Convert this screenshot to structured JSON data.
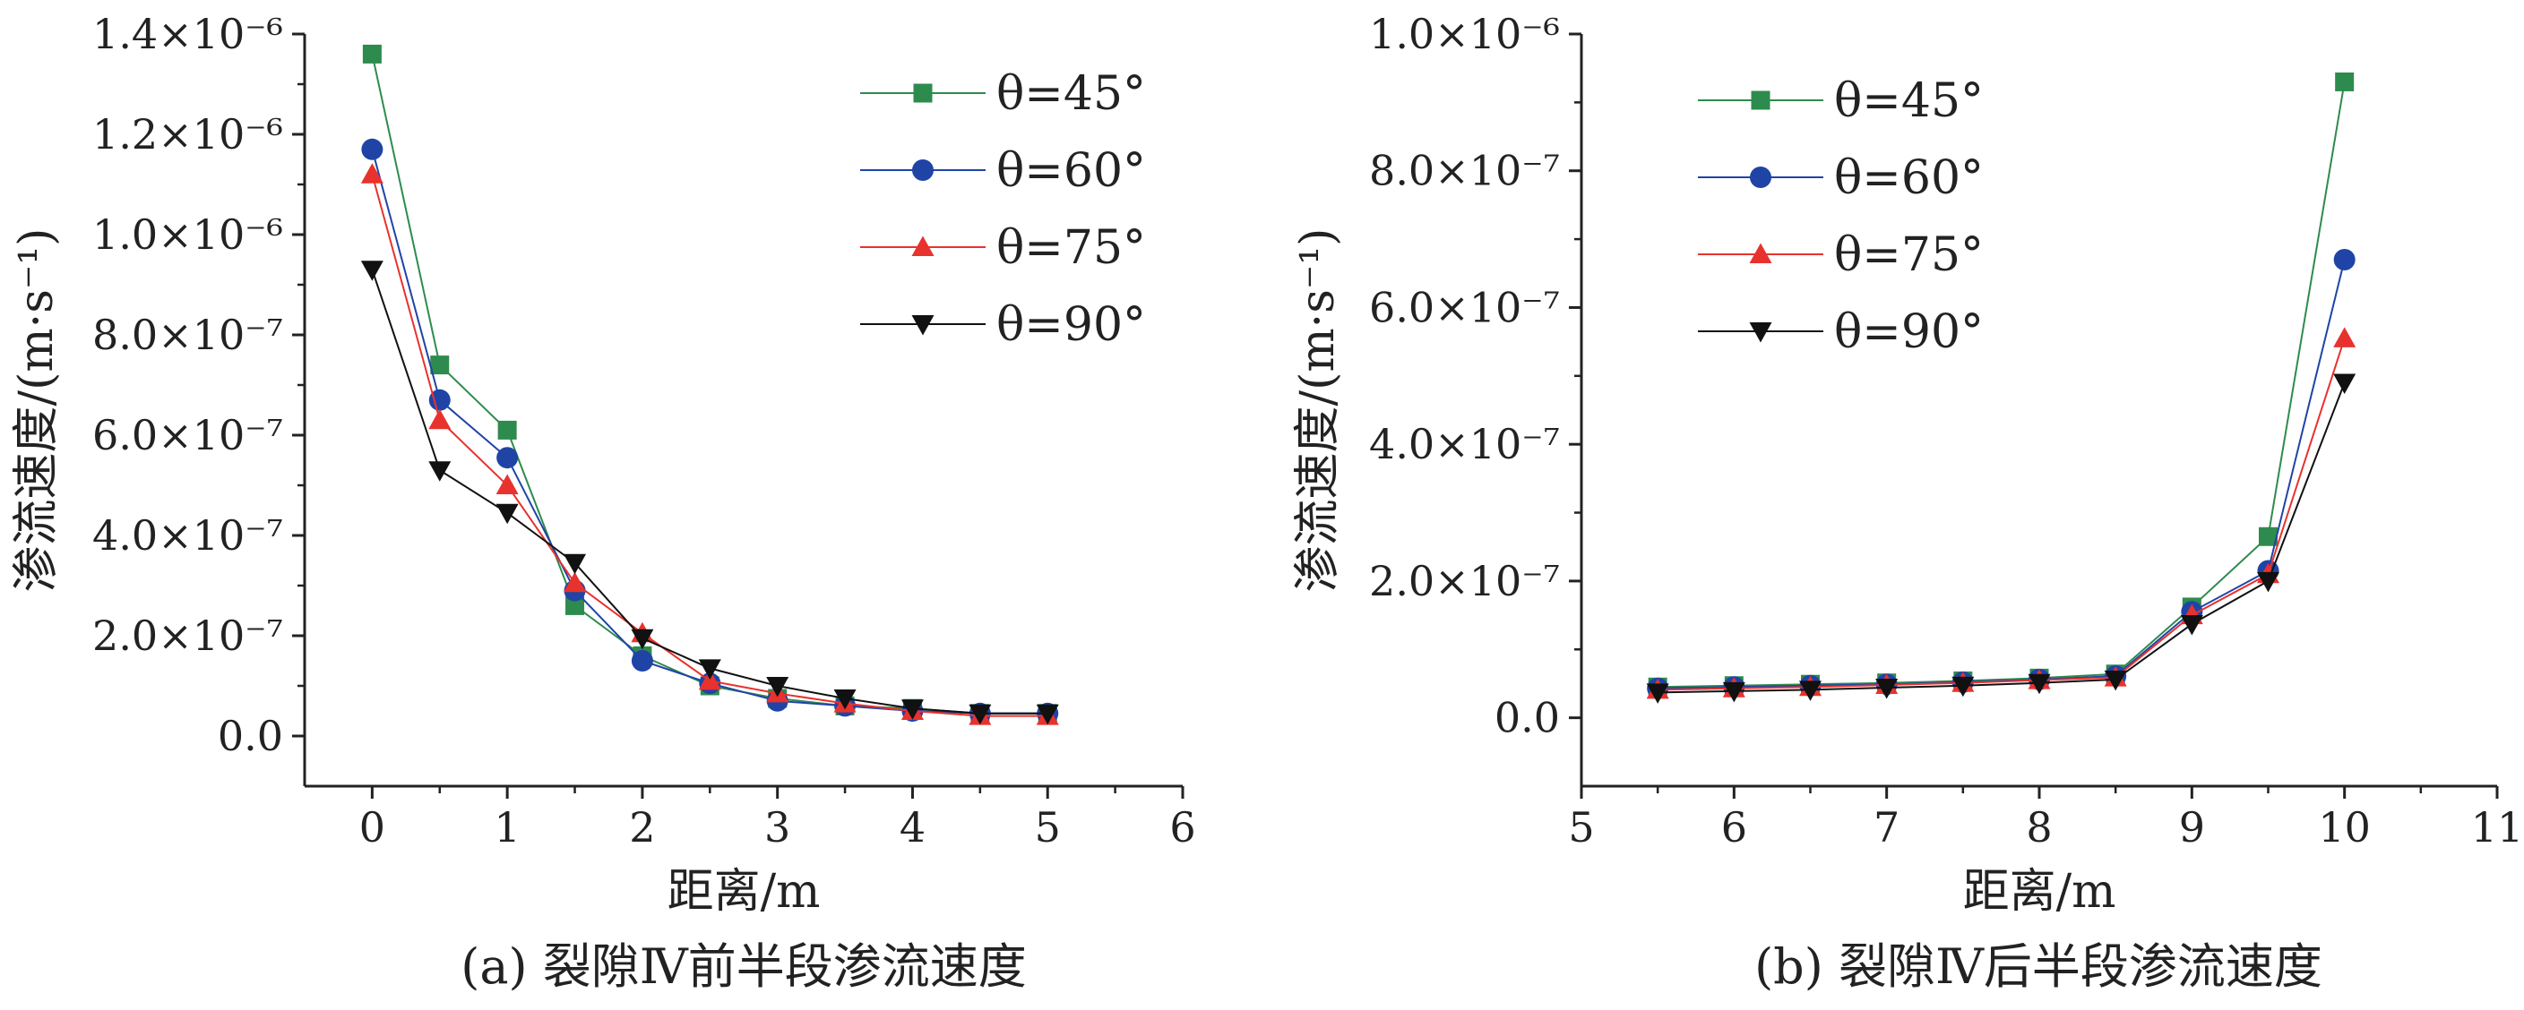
{
  "chart_data": [
    {
      "type": "line",
      "caption": "(a) 裂隙Ⅳ前半段渗流速度",
      "xlabel": "距离/m",
      "ylabel": "渗流速度/(m·s⁻¹)",
      "xlim": [
        -0.5,
        6
      ],
      "ylim": [
        -1e-07,
        1.4e-06
      ],
      "xticks": [
        "0",
        "1",
        "2",
        "3",
        "4",
        "5",
        "6"
      ],
      "yticks": [
        "0.0",
        "2.0×10⁻⁷",
        "4.0×10⁻⁷",
        "6.0×10⁻⁷",
        "8.0×10⁻⁷",
        "1.0×10⁻⁶",
        "1.2×10⁻⁶",
        "1.4×10⁻⁶"
      ],
      "legend_position": "top-right",
      "x": [
        0,
        0.5,
        1,
        1.5,
        2,
        2.5,
        3,
        3.5,
        4,
        4.5,
        5
      ],
      "series": [
        {
          "name": "θ=45°",
          "color": "#2e8b4e",
          "marker": "square",
          "values": [
            1.36e-06,
            7.4e-07,
            6.1e-07,
            2.6e-07,
            1.6e-07,
            1e-07,
            7.5e-08,
            6e-08,
            5.5e-08,
            4.5e-08,
            4.5e-08
          ]
        },
        {
          "name": "θ=60°",
          "color": "#1f44a6",
          "marker": "circle",
          "values": [
            1.17e-06,
            6.7e-07,
            5.55e-07,
            2.9e-07,
            1.5e-07,
            1.05e-07,
            7e-08,
            6e-08,
            5e-08,
            4.5e-08,
            4.5e-08
          ]
        },
        {
          "name": "θ=75°",
          "color": "#e8322e",
          "marker": "triangle-up",
          "values": [
            1.12e-06,
            6.3e-07,
            5e-07,
            3.05e-07,
            2.05e-07,
            1.1e-07,
            8.5e-08,
            6.5e-08,
            5e-08,
            4e-08,
            4e-08
          ]
        },
        {
          "name": "θ=90°",
          "color": "#111111",
          "marker": "triangle-down",
          "values": [
            9.3e-07,
            5.3e-07,
            4.45e-07,
            3.45e-07,
            1.95e-07,
            1.35e-07,
            1e-07,
            7.5e-08,
            5.5e-08,
            4.5e-08,
            4.5e-08
          ]
        }
      ]
    },
    {
      "type": "line",
      "caption": "(b) 裂隙Ⅳ后半段渗流速度",
      "xlabel": "距离/m",
      "ylabel": "渗流速度/(m·s⁻¹)",
      "xlim": [
        5,
        11
      ],
      "ylim": [
        -1e-07,
        1e-06
      ],
      "xticks": [
        "5",
        "6",
        "7",
        "8",
        "9",
        "10",
        "11"
      ],
      "yticks": [
        "0.0",
        "2.0×10⁻⁷",
        "4.0×10⁻⁷",
        "6.0×10⁻⁷",
        "8.0×10⁻⁷",
        "1.0×10⁻⁶"
      ],
      "legend_position": "top-left",
      "x": [
        5.5,
        6,
        6.5,
        7,
        7.5,
        8,
        8.5,
        9,
        9.5,
        10
      ],
      "series": [
        {
          "name": "θ=45°",
          "color": "#2e8b4e",
          "marker": "square",
          "values": [
            4.5e-08,
            4.7e-08,
            4.9e-08,
            5.1e-08,
            5.4e-08,
            5.8e-08,
            6.4e-08,
            1.62e-07,
            2.65e-07,
            9.3e-07
          ]
        },
        {
          "name": "θ=60°",
          "color": "#1f44a6",
          "marker": "circle",
          "values": [
            4.3e-08,
            4.5e-08,
            4.7e-08,
            4.9e-08,
            5.2e-08,
            5.6e-08,
            6.1e-08,
            1.55e-07,
            2.15e-07,
            6.7e-07
          ]
        },
        {
          "name": "θ=75°",
          "color": "#e8322e",
          "marker": "triangle-up",
          "values": [
            4.1e-08,
            4.3e-08,
            4.5e-08,
            4.8e-08,
            5.1e-08,
            5.5e-08,
            5.9e-08,
            1.5e-07,
            2.1e-07,
            5.55e-07
          ]
        },
        {
          "name": "θ=90°",
          "color": "#111111",
          "marker": "triangle-down",
          "values": [
            3.7e-08,
            3.9e-08,
            4.1e-08,
            4.4e-08,
            4.7e-08,
            5.1e-08,
            5.6e-08,
            1.37e-07,
            2e-07,
            4.9e-07
          ]
        }
      ]
    }
  ]
}
